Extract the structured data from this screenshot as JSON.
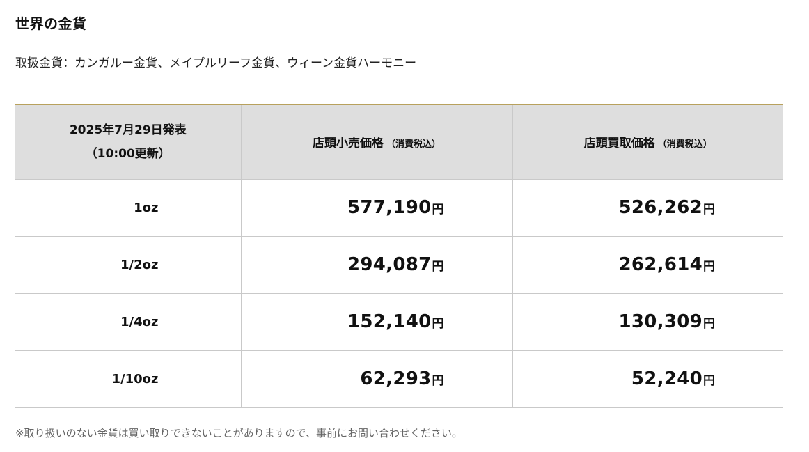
{
  "title": "世界の金貨",
  "subtitle": "取扱金貨：カンガルー金貨、メイプルリーフ金貨、ウィーン金貨ハーモニー",
  "table": {
    "header": {
      "date_line1": "2025年7月29日発表",
      "date_line2": "（10:00更新）",
      "retail_label": "店頭小売価格",
      "retail_note": "（消費税込）",
      "buyback_label": "店頭買取価格",
      "buyback_note": "（消費税込）"
    },
    "unit": "円",
    "rows": [
      {
        "weight": "1oz",
        "retail": "577,190",
        "buyback": "526,262"
      },
      {
        "weight": "1/2oz",
        "retail": "294,087",
        "buyback": "262,614"
      },
      {
        "weight": "1/4oz",
        "retail": "152,140",
        "buyback": "130,309"
      },
      {
        "weight": "1/10oz",
        "retail": "62,293",
        "buyback": "52,240"
      }
    ]
  },
  "footnote": "※取り扱いのない金貨は買い取りできないことがありますので、事前にお問い合わせください。",
  "colors": {
    "header_background": "#dedede",
    "header_top_border": "#b8a15d",
    "cell_border": "#c9c9c9"
  }
}
